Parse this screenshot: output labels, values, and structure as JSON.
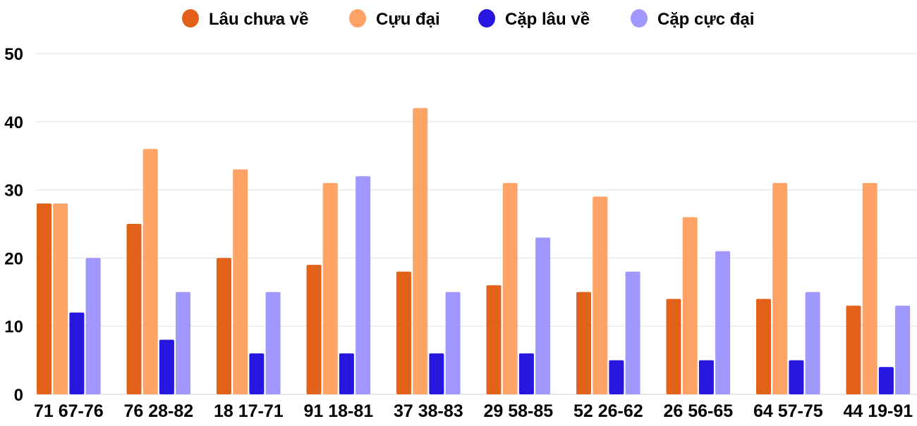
{
  "chart_data": {
    "type": "bar",
    "title": "",
    "xlabel": "",
    "ylabel": "",
    "ylim": [
      0,
      50
    ],
    "yticks": [
      0,
      10,
      20,
      30,
      40,
      50
    ],
    "grid": true,
    "legend_position": "top",
    "categories": [
      "71 67-76",
      "76 28-82",
      "18 17-71",
      "91 18-81",
      "37 38-83",
      "29 58-85",
      "52 26-62",
      "26 56-65",
      "64 57-75",
      "44 19-91"
    ],
    "series": [
      {
        "name": "Lâu chưa về",
        "color": "#E2621A",
        "values": [
          28,
          25,
          20,
          19,
          18,
          16,
          15,
          14,
          14,
          13
        ]
      },
      {
        "name": "Cựu đại",
        "color": "#FFA366",
        "values": [
          28,
          36,
          33,
          31,
          42,
          31,
          29,
          26,
          31,
          31
        ]
      },
      {
        "name": "Cặp lâu về",
        "color": "#2716E0",
        "values": [
          12,
          8,
          6,
          6,
          6,
          6,
          5,
          5,
          5,
          4
        ]
      },
      {
        "name": "Cặp cực đại",
        "color": "#A097FF",
        "values": [
          20,
          15,
          15,
          32,
          15,
          23,
          18,
          21,
          15,
          13
        ]
      }
    ]
  }
}
